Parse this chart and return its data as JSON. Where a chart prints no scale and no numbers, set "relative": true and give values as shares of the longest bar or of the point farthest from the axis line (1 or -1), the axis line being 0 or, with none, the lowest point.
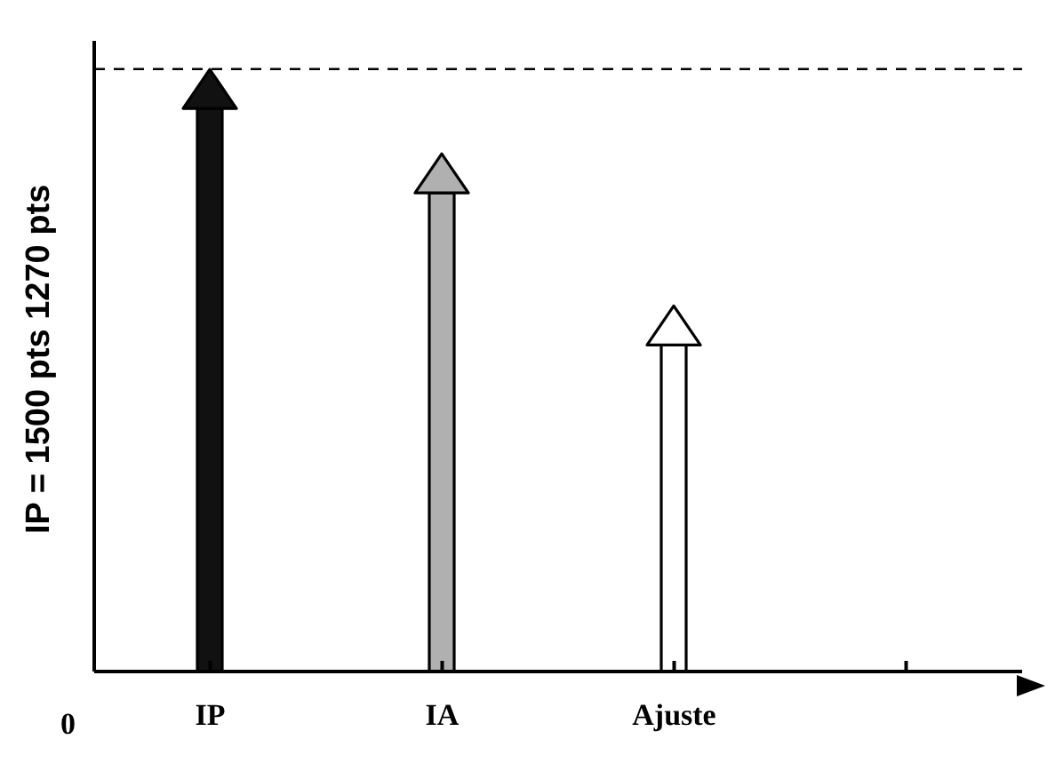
{
  "chart_data": {
    "type": "bar",
    "relative": true,
    "ylabel": "IP = 1500 pts 1270 pts",
    "categories": [
      "IP",
      "IA",
      "Ajuste",
      null
    ],
    "values": [
      1,
      0.85,
      0.58,
      null
    ],
    "colors": [
      "#111111",
      "#b0b0b0",
      "#ffffff",
      "#ffffff"
    ],
    "ref_lines": [
      {
        "axis": "y",
        "value": 1.07,
        "color": "#000000",
        "line_style": "dashed"
      }
    ],
    "annotations": [
      "0"
    ]
  }
}
